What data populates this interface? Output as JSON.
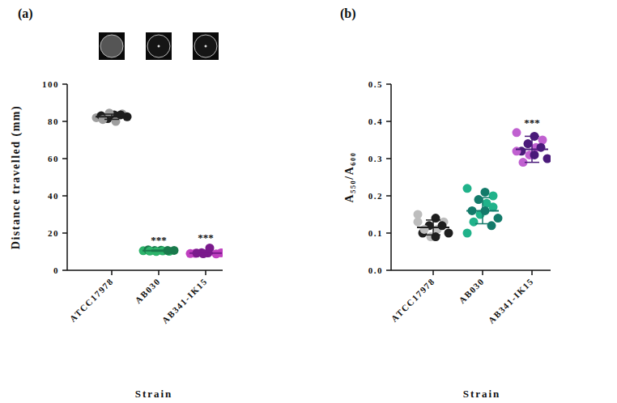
{
  "chart_data": [
    {
      "type": "scatter",
      "title": "(a)",
      "x_label": "Strain",
      "y_label": "Distance travelled (mm)",
      "categories": [
        "ATCC17978",
        "AB030",
        "AB341-IK15"
      ],
      "values": [
        [
          82,
          83.5,
          84,
          81.5,
          80,
          83,
          84.5,
          82.5,
          81,
          83.5
        ],
        [
          10.5,
          10.8,
          10.2,
          10.6,
          10.4,
          11,
          10.1,
          10.7,
          10.3,
          10.6
        ],
        [
          9,
          9.3,
          8.8,
          9.5,
          12,
          9.1,
          8.9,
          9.4,
          9.2
        ]
      ],
      "colors": [
        [
          "#9e9e9e",
          "#1e1e1e",
          "#9e9e9e",
          "#1e1e1e",
          "#9e9e9e",
          "#1e1e1e",
          "#9e9e9e",
          "#1e1e1e",
          "#9e9e9e",
          "#1e1e1e"
        ],
        [
          "#2db36b",
          "#1a7a4c",
          "#2db36b",
          "#1a7a4c",
          "#2db36b",
          "#1a7a4c",
          "#2db36b",
          "#1a7a4c",
          "#2db36b",
          "#1a7a4c"
        ],
        [
          "#c040c0",
          "#7a1a8c",
          "#c040c0",
          "#7a1a8c",
          "#7a1a8c",
          "#c040c0",
          "#7a1a8c",
          "#c040c0",
          "#7a1a8c"
        ]
      ],
      "mean": [
        82.5,
        10.5,
        9.2
      ],
      "error": [
        1.4,
        0.3,
        0.3
      ],
      "significance": [
        null,
        "***",
        "***"
      ],
      "ylim": [
        0,
        100
      ],
      "yticks": [
        0,
        20,
        40,
        60,
        80,
        100
      ]
    },
    {
      "type": "scatter",
      "title": "(b)",
      "x_label": "Strain",
      "y_label": "A₅₅₀/A₆₀₀",
      "categories": [
        "ATCC17978",
        "AB030",
        "AB341-IK15"
      ],
      "values": [
        [
          0.15,
          0.14,
          0.13,
          0.12,
          0.11,
          0.1,
          0.09,
          0.1,
          0.11,
          0.12,
          0.13,
          0.09
        ],
        [
          0.22,
          0.21,
          0.2,
          0.19,
          0.18,
          0.16,
          0.15,
          0.14,
          0.13,
          0.12,
          0.1,
          0.16,
          0.17
        ],
        [
          0.37,
          0.36,
          0.35,
          0.34,
          0.33,
          0.32,
          0.31,
          0.3,
          0.29,
          0.33,
          0.32,
          0.31
        ]
      ],
      "colors": [
        [
          "#bdbdbd",
          "#1e1e1e",
          "#bdbdbd",
          "#1e1e1e",
          "#bdbdbd",
          "#1e1e1e",
          "#bdbdbd",
          "#1e1e1e",
          "#bdbdbd",
          "#1e1e1e",
          "#bdbdbd",
          "#1e1e1e"
        ],
        [
          "#20b28a",
          "#137a6a",
          "#20b28a",
          "#137a6a",
          "#20b28a",
          "#137a6a",
          "#20b28a",
          "#137a6a",
          "#20b28a",
          "#137a6a",
          "#20b28a",
          "#137a6a",
          "#20b28a"
        ],
        [
          "#c060d0",
          "#4a1a7a",
          "#c060d0",
          "#4a1a7a",
          "#c060d0",
          "#4a1a7a",
          "#c060d0",
          "#4a1a7a",
          "#c060d0",
          "#4a1a7a",
          "#c060d0",
          "#4a1a7a"
        ]
      ],
      "mean": [
        0.115,
        0.16,
        0.325
      ],
      "error": [
        0.02,
        0.035,
        0.035
      ],
      "significance": [
        null,
        null,
        "***"
      ],
      "ylim": [
        0,
        0.5
      ],
      "yticks": [
        {
          "value": 0,
          "label": "0.0"
        },
        0.1,
        0.2,
        0.3,
        0.4,
        0.5
      ]
    }
  ]
}
